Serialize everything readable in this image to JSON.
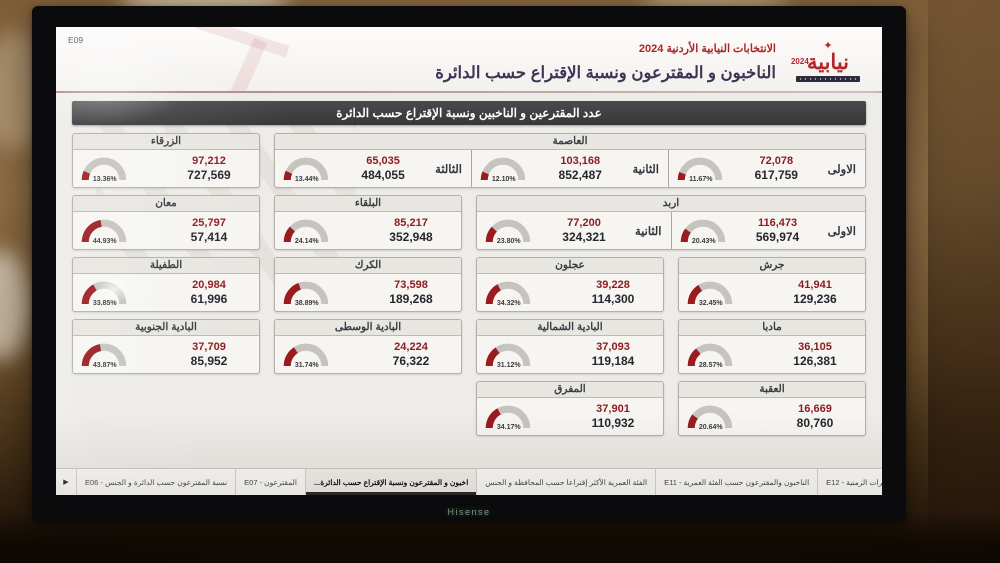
{
  "page_label": "E09",
  "header": {
    "kicker": "الانتخابات النيابية الأردنية 2024",
    "title": "الناخبون و المقترعون ونسبة الإقتراع حسب الدائرة",
    "logo": {
      "name": "نيابية",
      "year": "2024",
      "icon": "seven-pointed-star-icon"
    }
  },
  "section_title": "عدد المقترعين و الناخبين ونسبة الإقتراع حسب الدائرة",
  "gauge_rows": [
    [
      {
        "title": "العاصمة",
        "span": 3,
        "units": [
          {
            "label": "الاولى",
            "pct": 11.67,
            "pct_label": "11.67%",
            "voted": "72,078",
            "registered": "617,759"
          },
          {
            "label": "الثانية",
            "pct": 12.1,
            "pct_label": "12.10%",
            "voted": "103,168",
            "registered": "852,487"
          },
          {
            "label": "الثالثة",
            "pct": 13.44,
            "pct_label": "13.44%",
            "voted": "65,035",
            "registered": "484,055"
          }
        ]
      },
      {
        "title": "الزرقاء",
        "span": 1,
        "units": [
          {
            "pct": 13.36,
            "pct_label": "13.36%",
            "voted": "97,212",
            "registered": "727,569"
          }
        ]
      }
    ],
    [
      {
        "title": "اربد",
        "span": 2,
        "units": [
          {
            "label": "الاولى",
            "pct": 20.43,
            "pct_label": "20.43%",
            "voted": "116,473",
            "registered": "569,974"
          },
          {
            "label": "الثانية",
            "pct": 23.8,
            "pct_label": "23.80%",
            "voted": "77,200",
            "registered": "324,321"
          }
        ]
      },
      {
        "title": "البلقاء",
        "span": 1,
        "units": [
          {
            "pct": 24.14,
            "pct_label": "24.14%",
            "voted": "85,217",
            "registered": "352,948"
          }
        ]
      },
      {
        "title": "معان",
        "span": 1,
        "units": [
          {
            "pct": 44.93,
            "pct_label": "44.93%",
            "voted": "25,797",
            "registered": "57,414"
          }
        ]
      }
    ],
    [
      {
        "title": "جرش",
        "span": 1,
        "units": [
          {
            "pct": 32.45,
            "pct_label": "32.45%",
            "voted": "41,941",
            "registered": "129,236"
          }
        ]
      },
      {
        "title": "عجلون",
        "span": 1,
        "units": [
          {
            "pct": 34.32,
            "pct_label": "34.32%",
            "voted": "39,228",
            "registered": "114,300"
          }
        ]
      },
      {
        "title": "الكرك",
        "span": 1,
        "units": [
          {
            "pct": 38.89,
            "pct_label": "38.89%",
            "voted": "73,598",
            "registered": "189,268"
          }
        ]
      },
      {
        "title": "الطفيلة",
        "span": 1,
        "units": [
          {
            "pct": 33.85,
            "pct_label": "33.85%",
            "voted": "20,984",
            "registered": "61,996"
          }
        ]
      }
    ],
    [
      {
        "title": "مادبا",
        "span": 1,
        "units": [
          {
            "pct": 28.57,
            "pct_label": "28.57%",
            "voted": "36,105",
            "registered": "126,381"
          }
        ]
      },
      {
        "title": "البادية الشمالية",
        "span": 1,
        "units": [
          {
            "pct": 31.12,
            "pct_label": "31.12%",
            "voted": "37,093",
            "registered": "119,184"
          }
        ]
      },
      {
        "title": "البادية الوسطى",
        "span": 1,
        "units": [
          {
            "pct": 31.74,
            "pct_label": "31.74%",
            "voted": "24,224",
            "registered": "76,322"
          }
        ]
      },
      {
        "title": "البادية الجنوبية",
        "span": 1,
        "units": [
          {
            "pct": 43.87,
            "pct_label": "43.87%",
            "voted": "37,709",
            "registered": "85,952"
          }
        ]
      }
    ],
    [
      {
        "title": "العقبة",
        "span": 1,
        "units": [
          {
            "pct": 20.64,
            "pct_label": "20.64%",
            "voted": "16,669",
            "registered": "80,760"
          }
        ]
      },
      {
        "title": "المفرق",
        "span": 1,
        "units": [
          {
            "pct": 34.17,
            "pct_label": "34.17%",
            "voted": "37,901",
            "registered": "110,932"
          }
        ]
      }
    ]
  ],
  "footer": {
    "nav_arrow": "▶",
    "tabs": [
      {
        "label": "E06 - نسبة المقترعون حسب الدائرة و الجنس",
        "active": false
      },
      {
        "label": "E07 - المقترعون",
        "active": false
      },
      {
        "label": "...اخبون و المقترعون ونسبة الإقتراع حسب الدائرة",
        "active": true
      },
      {
        "label": "الفئة العمرية الأكثر إقتراعا حسب المحافظة و الجنس",
        "active": false
      },
      {
        "label": "E11 - الناخبون والمقترعون حسب الفئة العمرية",
        "active": false
      },
      {
        "label": "E12 - المقترعون حسب الفترات الزمنية",
        "active": false
      },
      {
        "label": "الزمنية",
        "active": false
      }
    ]
  },
  "tv": {
    "brand": "Hisense"
  },
  "colors": {
    "accent_red": "#9b1b1f",
    "number_red": "#8e1a1f",
    "title_red": "#ad2327",
    "title_dark": "#3c3554",
    "gauge_track": "#c7c4bf",
    "section_bar": "#3d3d40"
  }
}
